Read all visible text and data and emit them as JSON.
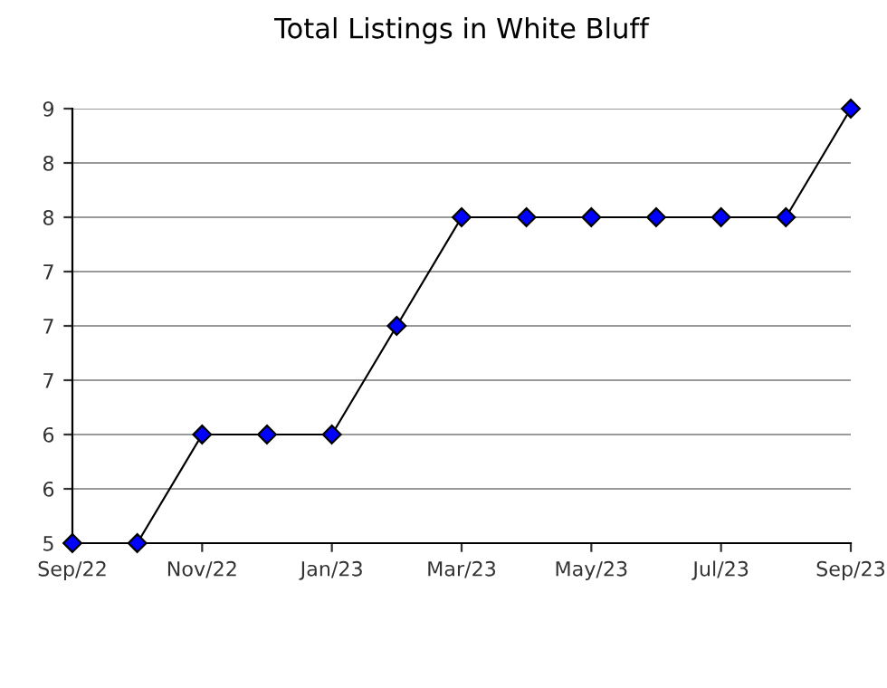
{
  "chart_data": {
    "type": "line",
    "title": "Total Listings in White Bluff",
    "categories": [
      "Sep/22",
      null,
      "Nov/22",
      null,
      "Jan/23",
      null,
      "Mar/23",
      null,
      "May/23",
      null,
      "Jul/23",
      null,
      "Sep/23"
    ],
    "series": [
      {
        "color": "#0000ff",
        "values": [
          5,
          5,
          6,
          6,
          6,
          7,
          8,
          8,
          8,
          8,
          8,
          8,
          9
        ]
      }
    ],
    "ylim": [
      5,
      9
    ],
    "yticks": [
      {
        "value": 5,
        "label": "5"
      },
      {
        "value": 5.5,
        "label": "6"
      },
      {
        "value": 6,
        "label": "6"
      },
      {
        "value": 6.5,
        "label": "7"
      },
      {
        "value": 7,
        "label": "7"
      },
      {
        "value": 7.5,
        "label": "7"
      },
      {
        "value": 8,
        "label": "8"
      },
      {
        "value": 8.5,
        "label": "8"
      },
      {
        "value": 9,
        "label": "9"
      }
    ],
    "grid": "y",
    "marker": "diamond",
    "line_style": "solid"
  }
}
